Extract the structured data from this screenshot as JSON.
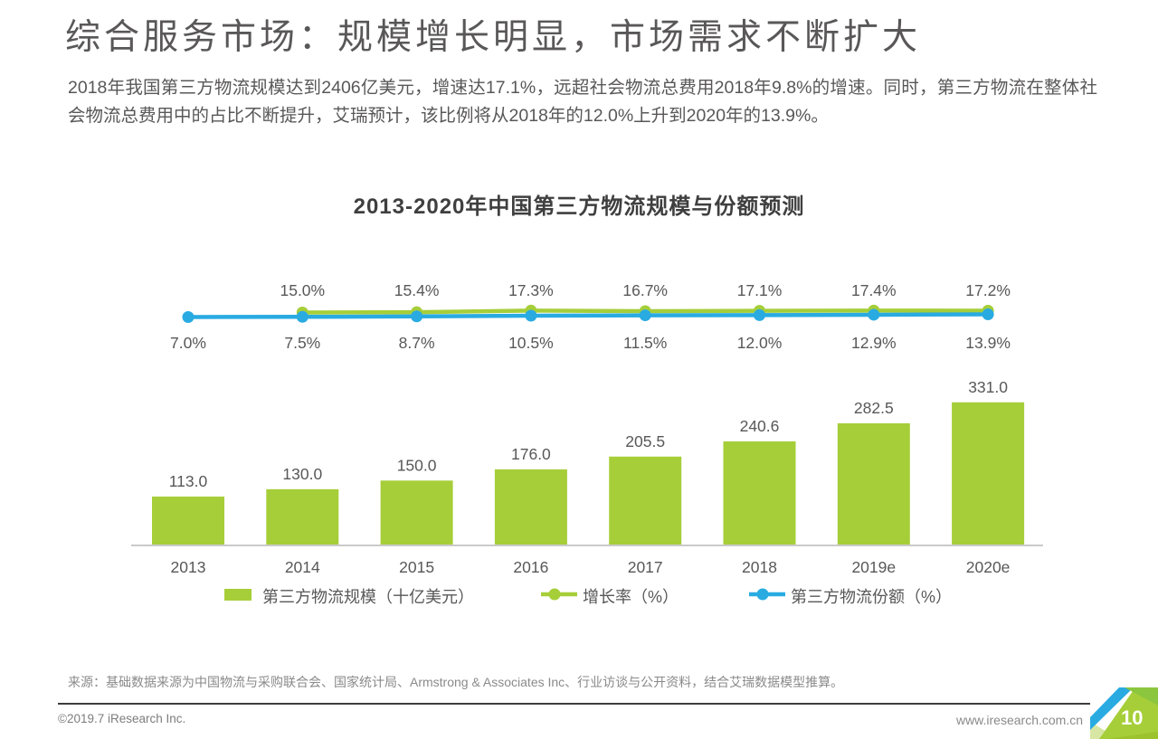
{
  "page": {
    "title": "综合服务市场：规模增长明显，市场需求不断扩大",
    "intro": "2018年我国第三方物流规模达到2406亿美元，增速达17.1%，远超社会物流总费用2018年9.8%的增速。同时，第三方物流在整体社会物流总费用中的占比不断提升，艾瑞预计，该比例将从2018年的12.0%上升到2020年的13.9%。"
  },
  "chart_data": {
    "type": "combo-bar-line",
    "title": "2013-2020年中国第三方物流规模与份额预测",
    "categories": [
      "2013",
      "2014",
      "2015",
      "2016",
      "2017",
      "2018",
      "2019e",
      "2020e"
    ],
    "series": [
      {
        "name": "第三方物流规模（十亿美元）",
        "type": "bar",
        "color": "#a6ce39",
        "values": [
          113.0,
          130.0,
          150.0,
          176.0,
          205.5,
          240.6,
          282.5,
          331.0
        ],
        "labels": [
          "113.0",
          "130.0",
          "150.0",
          "176.0",
          "205.5",
          "240.6",
          "282.5",
          "331.0"
        ]
      },
      {
        "name": "增长率（%）",
        "type": "line",
        "color": "#a6ce39",
        "values": [
          null,
          15.0,
          15.4,
          17.3,
          16.7,
          17.1,
          17.4,
          17.2
        ],
        "labels": [
          "",
          "15.0%",
          "15.4%",
          "17.3%",
          "16.7%",
          "17.1%",
          "17.4%",
          "17.2%"
        ]
      },
      {
        "name": "第三方物流份额（%）",
        "type": "line",
        "color": "#29abe2",
        "values": [
          7.0,
          7.5,
          8.7,
          10.5,
          11.5,
          12.0,
          12.9,
          13.9
        ],
        "labels": [
          "7.0%",
          "7.5%",
          "8.7%",
          "10.5%",
          "11.5%",
          "12.0%",
          "12.9%",
          "13.9%"
        ]
      }
    ],
    "legend_position": "bottom",
    "grid": false,
    "value_axis_visible": false
  },
  "source": "来源：基础数据来源为中国物流与采购联合会、国家统计局、Armstrong & Associates Inc、行业访谈与公开资料，结合艾瑞数据模型推算。",
  "footer": {
    "copyright": "©2019.7 iResearch Inc.",
    "website": "www.iresearch.com.cn",
    "page_number": "10"
  },
  "colors": {
    "accent_green": "#a6ce39",
    "accent_blue": "#29abe2",
    "text_gray": "#595757",
    "axis_gray": "#cbcaca"
  }
}
